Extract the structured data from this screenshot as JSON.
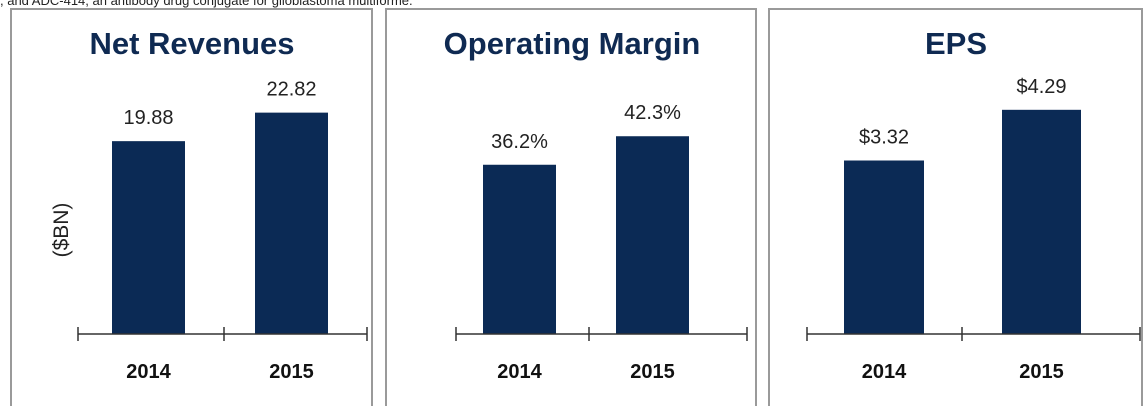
{
  "caption": ", and ADC-414, an antibody drug conjugate for glioblastoma multiforme.",
  "colors": {
    "bar": "#0b2a55",
    "title": "#0f2a52",
    "border": "#9a9a9a",
    "axis": "#333333"
  },
  "chart_data": [
    {
      "type": "bar",
      "title": "Net Revenues",
      "ylabel": "($BN)",
      "categories": [
        "2014",
        "2015"
      ],
      "values": [
        19.88,
        22.82
      ],
      "labels": [
        "19.88",
        "22.82"
      ],
      "ylim": [
        0,
        33.4
      ]
    },
    {
      "type": "bar",
      "title": "Operating Margin",
      "ylabel": "",
      "categories": [
        "2014",
        "2015"
      ],
      "values": [
        36.2,
        42.3
      ],
      "labels": [
        "36.2%",
        "42.3%"
      ],
      "ylim": [
        0,
        69.3
      ]
    },
    {
      "type": "bar",
      "title": "EPS",
      "ylabel": "",
      "categories": [
        "2014",
        "2015"
      ],
      "values": [
        3.32,
        4.29
      ],
      "labels": [
        "$3.32",
        "$4.29"
      ],
      "ylim": [
        0,
        6.2
      ]
    }
  ]
}
